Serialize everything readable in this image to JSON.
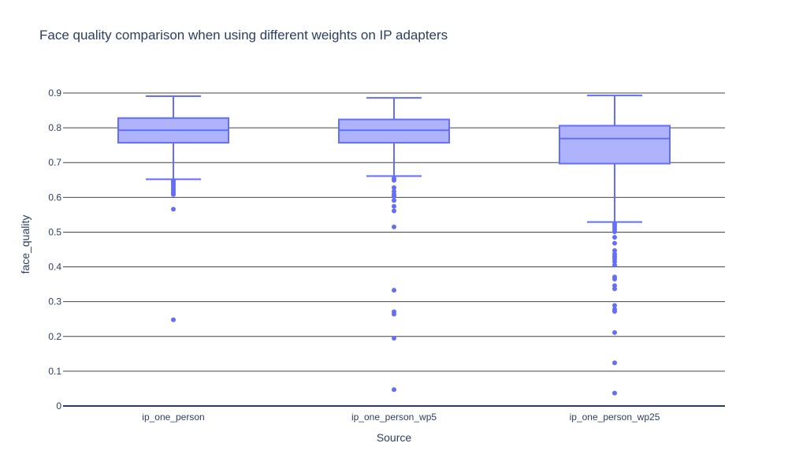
{
  "chart_data": {
    "type": "box",
    "title": "Face quality comparison when using different weights on IP adapters",
    "xlabel": "Source",
    "ylabel": "face_quality",
    "ylim": [
      0,
      0.9
    ],
    "yticks": [
      "0",
      "0.1",
      "0.2",
      "0.3",
      "0.4",
      "0.5",
      "0.6",
      "0.7",
      "0.8",
      "0.9"
    ],
    "grid": true,
    "colors": {
      "line": "#636efa",
      "fill": "#aeb3fc",
      "grid": "#444444",
      "text": "#2a3f5f"
    },
    "categories": [
      "ip_one_person",
      "ip_one_person_wp5",
      "ip_one_person_wp25"
    ],
    "boxes": [
      {
        "category": "ip_one_person",
        "min": 0.652,
        "q1": 0.757,
        "median": 0.793,
        "q3": 0.828,
        "max": 0.891,
        "outliers": [
          0.648,
          0.643,
          0.638,
          0.633,
          0.627,
          0.622,
          0.617,
          0.612,
          0.608,
          0.566,
          0.248
        ]
      },
      {
        "category": "ip_one_person_wp5",
        "min": 0.661,
        "q1": 0.757,
        "median": 0.793,
        "q3": 0.824,
        "max": 0.886,
        "outliers": [
          0.654,
          0.649,
          0.628,
          0.617,
          0.608,
          0.603,
          0.591,
          0.574,
          0.561,
          0.515,
          0.333,
          0.271,
          0.264,
          0.195,
          0.047
        ]
      },
      {
        "category": "ip_one_person_wp25",
        "min": 0.529,
        "q1": 0.697,
        "median": 0.769,
        "q3": 0.806,
        "max": 0.893,
        "outliers": [
          0.523,
          0.516,
          0.508,
          0.501,
          0.485,
          0.468,
          0.447,
          0.437,
          0.43,
          0.423,
          0.415,
          0.405,
          0.371,
          0.365,
          0.346,
          0.337,
          0.289,
          0.278,
          0.272,
          0.211,
          0.124,
          0.037
        ]
      }
    ]
  }
}
